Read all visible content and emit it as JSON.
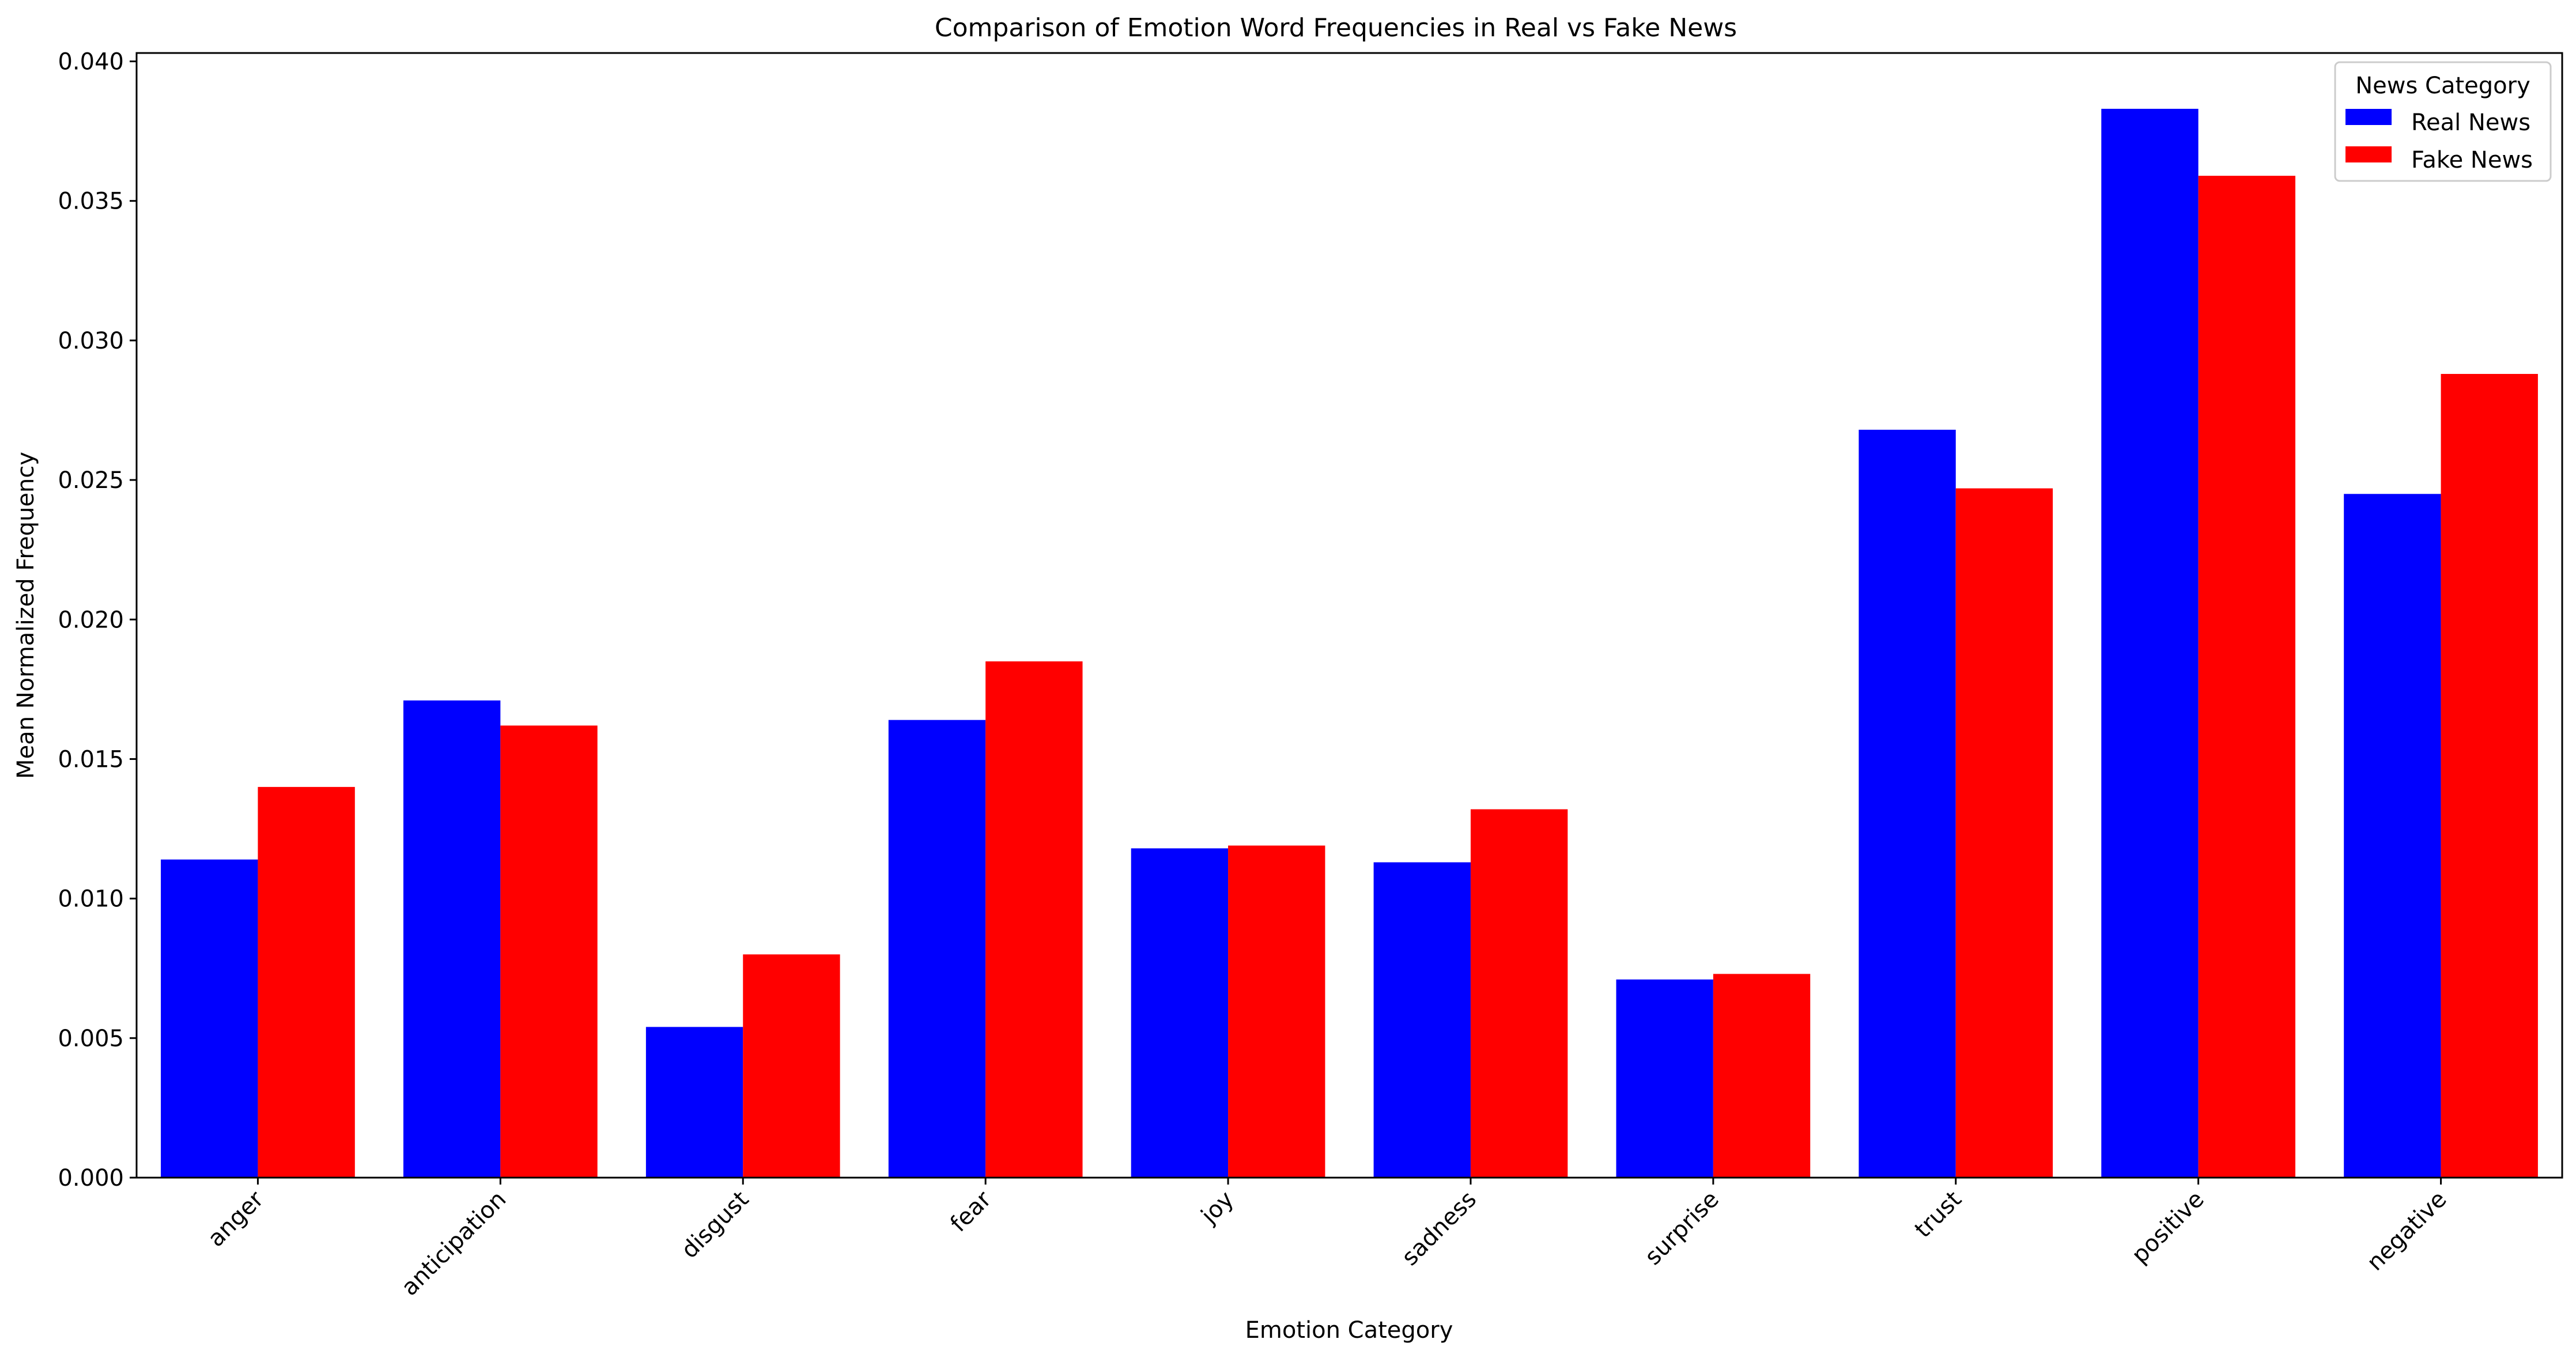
{
  "chart_data": {
    "type": "bar",
    "title": "Comparison of Emotion Word Frequencies in Real vs Fake News",
    "xlabel": "Emotion Category",
    "ylabel": "Mean Normalized Frequency",
    "categories": [
      "anger",
      "anticipation",
      "disgust",
      "fear",
      "joy",
      "sadness",
      "surprise",
      "trust",
      "positive",
      "negative"
    ],
    "series": [
      {
        "name": "Real News",
        "color": "#0000ff",
        "values": [
          0.0114,
          0.0171,
          0.0054,
          0.0164,
          0.0118,
          0.0113,
          0.0071,
          0.0268,
          0.0383,
          0.0245
        ]
      },
      {
        "name": "Fake News",
        "color": "#ff0000",
        "values": [
          0.014,
          0.0162,
          0.008,
          0.0185,
          0.0119,
          0.0132,
          0.0073,
          0.0247,
          0.0359,
          0.0288
        ]
      }
    ],
    "ylim": [
      0,
      0.0403
    ],
    "yticks": [
      "0.000",
      "0.005",
      "0.010",
      "0.015",
      "0.020",
      "0.025",
      "0.030",
      "0.035",
      "0.040"
    ],
    "legend": {
      "title": "News Category",
      "position": "top-right"
    },
    "grid": false
  }
}
